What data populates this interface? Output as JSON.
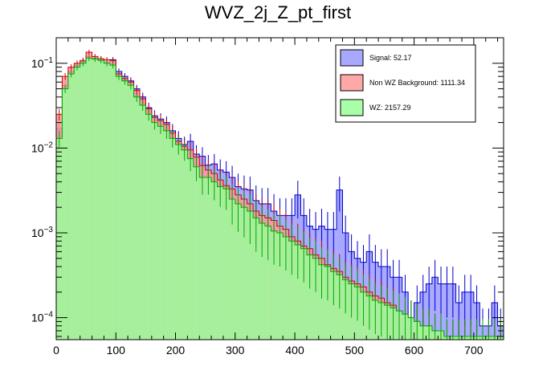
{
  "chart_data": {
    "type": "histogram",
    "title": "WVZ_2j_Z_pt_first",
    "xlabel": "",
    "ylabel": "",
    "xlim": [
      0,
      750
    ],
    "ylim": [
      5.5e-05,
      0.2
    ],
    "log_y": true,
    "grid": false,
    "legend_position": "top-right",
    "bin_width": 10,
    "x_ticks": [
      0,
      100,
      200,
      300,
      400,
      500,
      600,
      700
    ],
    "x_tick_labels": [
      "0",
      "100",
      "200",
      "300",
      "400",
      "500",
      "600",
      "700"
    ],
    "y_tick_labels": [
      {
        "value": 0.1,
        "mantissa": "10",
        "exponent": "−1"
      },
      {
        "value": 0.01,
        "mantissa": "10",
        "exponent": "−2"
      },
      {
        "value": 0.001,
        "mantissa": "10",
        "exponent": "−3"
      },
      {
        "value": 0.0001,
        "mantissa": "10",
        "exponent": "−4"
      }
    ],
    "series": [
      {
        "name": "Signal",
        "legend_label": "Signal: 52.17",
        "total": 52.17,
        "fill": "#9999ff",
        "fill_opacity": 0.85,
        "stroke": "#0000cc",
        "error_bars": true,
        "values": [
          0.017,
          0.055,
          0.08,
          0.095,
          0.105,
          0.12,
          0.115,
          0.112,
          0.1,
          0.11,
          0.08,
          0.07,
          0.062,
          0.05,
          0.04,
          0.03,
          0.024,
          0.022,
          0.02,
          0.016,
          0.013,
          0.011,
          0.012,
          0.0085,
          0.008,
          0.0063,
          0.0065,
          0.0055,
          0.0052,
          0.0045,
          0.0035,
          0.0033,
          0.0032,
          0.0024,
          0.0022,
          0.0022,
          0.0018,
          0.0016,
          0.0016,
          0.0016,
          0.0028,
          0.0016,
          0.0012,
          0.0011,
          0.0012,
          0.0011,
          0.0011,
          0.0032,
          0.001,
          0.0006,
          0.0005,
          0.00045,
          0.0006,
          0.00045,
          0.0004,
          0.0004,
          0.0003,
          0.0003,
          0.0002,
          0.0001,
          0.00015,
          0.0002,
          0.00025,
          0.0003,
          0.00025,
          0.00025,
          0.00025,
          0.00015,
          0.0002,
          0.0002,
          0.00015,
          8e-05,
          8e-05,
          0.00015,
          8e-05
        ]
      },
      {
        "name": "Non WZ Background",
        "legend_label": "Non WZ Background: 1111.34",
        "total": 1111.34,
        "fill": "#ff9999",
        "fill_opacity": 0.85,
        "stroke": "#cc0000",
        "error_bars": true,
        "values": [
          0.025,
          0.07,
          0.09,
          0.1,
          0.108,
          0.135,
          0.12,
          0.113,
          0.11,
          0.108,
          0.075,
          0.066,
          0.06,
          0.048,
          0.038,
          0.029,
          0.023,
          0.021,
          0.019,
          0.015,
          0.012,
          0.0105,
          0.0095,
          0.0078,
          0.0062,
          0.0055,
          0.005,
          0.0042,
          0.0036,
          0.0033,
          0.0028,
          0.0025,
          0.0022,
          0.0018,
          0.0016,
          0.0015,
          0.0014,
          0.0012,
          0.0011,
          0.0009,
          0.0008,
          0.0007,
          0.00065,
          0.00055,
          0.0005,
          0.00042,
          0.00038,
          0.00035,
          0.0003,
          0.00027,
          0.00025,
          0.00023,
          0.0002,
          0.00018,
          0.00017,
          0.00015,
          0.00014,
          0.00012,
          0.00011,
          0.0001,
          9e-05,
          8e-05,
          8e-05,
          7e-05,
          7e-05,
          6e-05,
          6e-05,
          6e-05,
          6e-05,
          6e-05,
          6e-05,
          6e-05,
          6e-05,
          6e-05,
          6e-05
        ]
      },
      {
        "name": "WZ",
        "legend_label": "WZ: 2157.29",
        "total": 2157.29,
        "fill": "#99ff99",
        "fill_opacity": 0.85,
        "stroke": "#00aa00",
        "error_bars": true,
        "values": [
          0.013,
          0.05,
          0.075,
          0.09,
          0.1,
          0.115,
          0.112,
          0.108,
          0.1,
          0.095,
          0.07,
          0.062,
          0.055,
          0.04,
          0.032,
          0.025,
          0.02,
          0.018,
          0.016,
          0.013,
          0.011,
          0.0095,
          0.0075,
          0.006,
          0.0045,
          0.0045,
          0.004,
          0.0035,
          0.0033,
          0.0025,
          0.0022,
          0.002,
          0.0018,
          0.0015,
          0.0013,
          0.0012,
          0.00105,
          0.001,
          0.0009,
          0.0008,
          0.00072,
          0.00065,
          0.00055,
          0.0005,
          0.00042,
          0.0004,
          0.00035,
          0.00032,
          0.00028,
          0.00025,
          0.00023,
          0.0002,
          0.00018,
          0.00016,
          0.00015,
          0.00014,
          0.00013,
          0.00012,
          0.00011,
          0.0001,
          9e-05,
          8e-05,
          8e-05,
          7e-05,
          7e-05,
          6e-05,
          6e-05,
          6e-05,
          6e-05,
          6e-05,
          6e-05,
          6e-05,
          6e-05,
          6e-05,
          6e-05
        ]
      }
    ]
  }
}
